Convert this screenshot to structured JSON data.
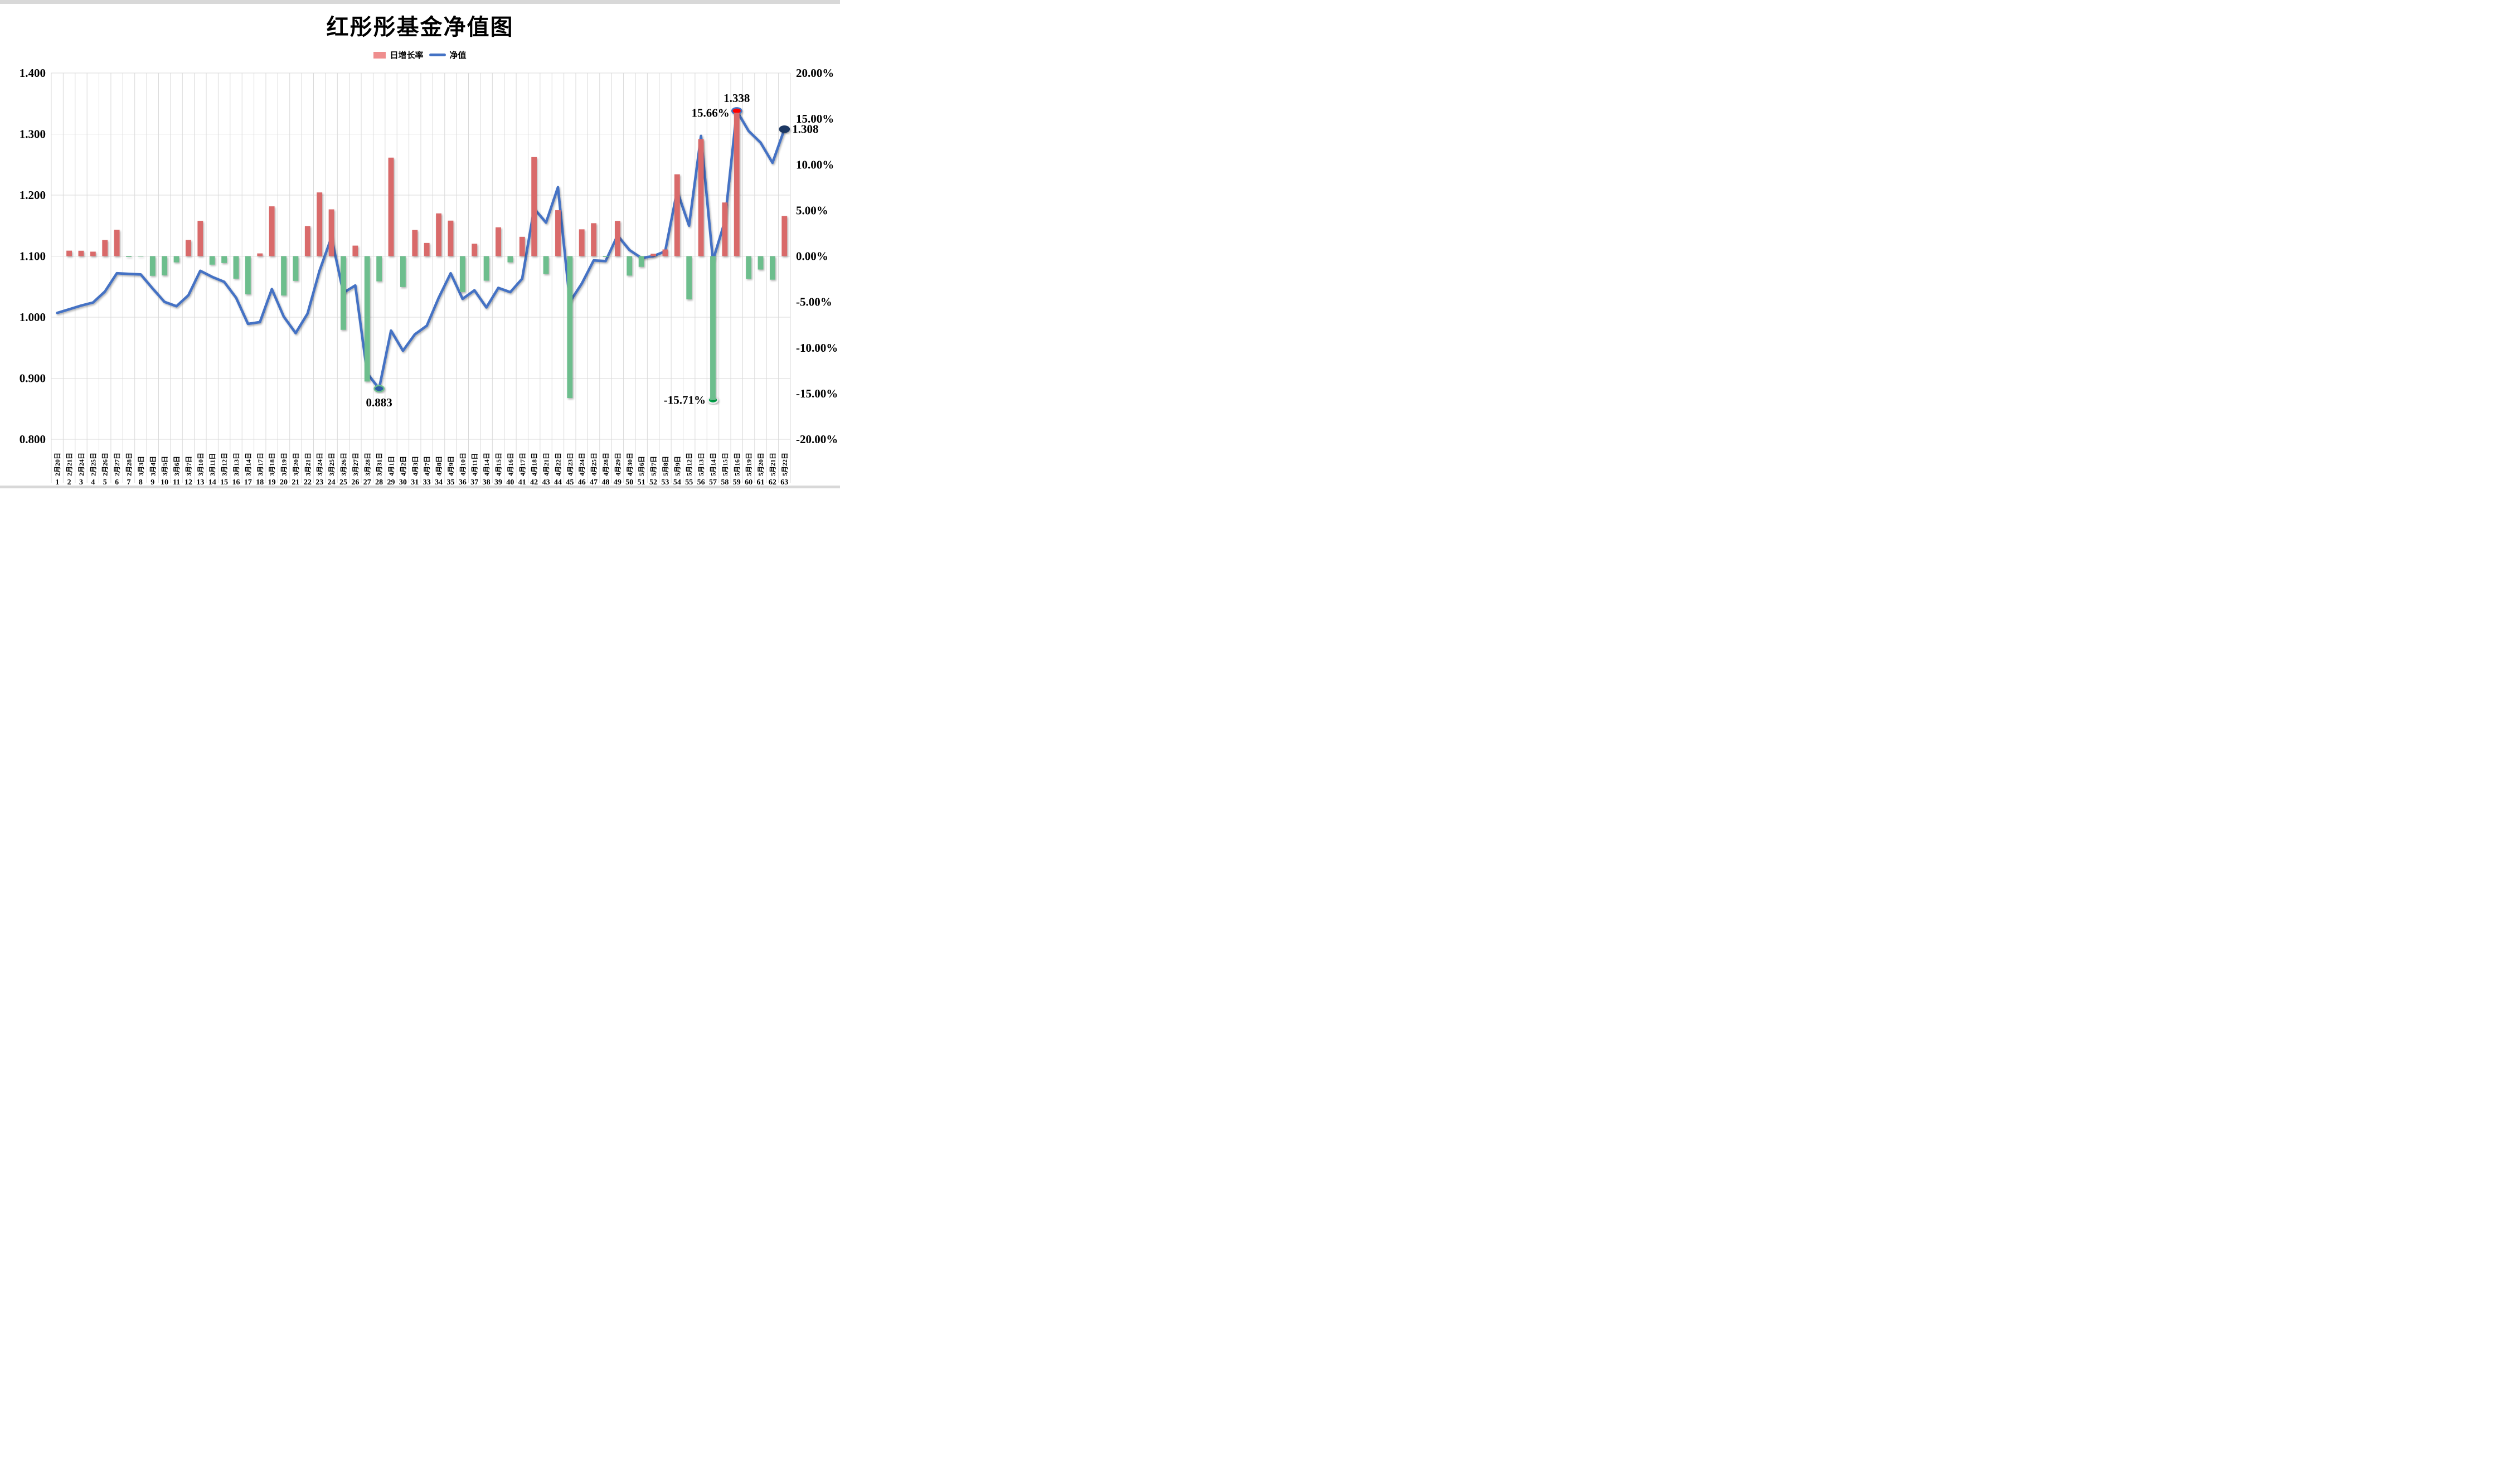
{
  "page": {
    "title": "红彤彤基金净值图"
  },
  "legend": {
    "bar_label": "日增长率",
    "line_label": "净值"
  },
  "colors": {
    "bar_up": "#d96a6a",
    "bar_down": "#6dbe8d",
    "line": "#4472c4",
    "grid": "#d9d9d9",
    "marker_min_fill": "#2e5fa3",
    "marker_min_ring": "#6dbe8d",
    "marker_barlow_fill": "#00b050",
    "marker_barlow_ring": "#f2f2f2",
    "marker_max_fill": "#ff0000",
    "marker_max_ring": "#4472c4",
    "marker_last_fill": "#1f3864",
    "marker_last_ring": "#1f3864"
  },
  "axes": {
    "left_ticks": [
      "1.400",
      "1.300",
      "1.200",
      "1.100",
      "1.000",
      "0.900",
      "0.800"
    ],
    "right_ticks": [
      "20.00%",
      "15.00%",
      "10.00%",
      "5.00%",
      "0.00%",
      "-5.00%",
      "-10.00%",
      "-15.00%",
      "-20.00%"
    ]
  },
  "chart_data": {
    "type": "combo (bar + line)",
    "title": "红彤彤基金净值图",
    "left_axis": {
      "label": "净值",
      "min": 0.8,
      "max": 1.4,
      "step": 0.1
    },
    "right_axis": {
      "label": "日增长率",
      "min": -20,
      "max": 20,
      "step": 5,
      "unit": "%"
    },
    "grid": "on",
    "legend_position": "top",
    "categories": [
      "2月20日",
      "2月21日",
      "2月24日",
      "2月25日",
      "2月26日",
      "2月27日",
      "2月28日",
      "3月3日",
      "3月4日",
      "3月5日",
      "3月6日",
      "3月7日",
      "3月10日",
      "3月11日",
      "3月12日",
      "3月13日",
      "3月14日",
      "3月17日",
      "3月18日",
      "3月19日",
      "3月20日",
      "3月21日",
      "3月24日",
      "3月25日",
      "3月26日",
      "3月27日",
      "3月28日",
      "3月31日",
      "4月1日",
      "4月2日",
      "4月3日",
      "4月7日",
      "4月8日",
      "4月9日",
      "4月10日",
      "4月11日",
      "4月14日",
      "4月15日",
      "4月16日",
      "4月17日",
      "4月18日",
      "4月21日",
      "4月22日",
      "4月23日",
      "4月24日",
      "4月25日",
      "4月28日",
      "4月29日",
      "4月30日",
      "5月6日",
      "5月7日",
      "5月8日",
      "5月9日",
      "5月12日",
      "5月13日",
      "5月14日",
      "5月15日",
      "5月16日",
      "5月19日",
      "5月20日",
      "5月21日",
      "5月22日"
    ],
    "category_indices": [
      1,
      2,
      3,
      4,
      5,
      6,
      7,
      8,
      9,
      10,
      11,
      12,
      13,
      14,
      15,
      16,
      17,
      18,
      19,
      20,
      21,
      22,
      23,
      24,
      25,
      26,
      27,
      28,
      29,
      30,
      31,
      33,
      34,
      35,
      36,
      37,
      38,
      39,
      40,
      41,
      42,
      43,
      44,
      45,
      46,
      47,
      48,
      49,
      50,
      51,
      52,
      53,
      54,
      55,
      56,
      57,
      58,
      59,
      60,
      61,
      62,
      63
    ],
    "series": [
      {
        "name": "日增长率",
        "type": "bar",
        "axis": "right",
        "unit": "%",
        "values": [
          null,
          0.6,
          0.59,
          0.49,
          1.76,
          2.88,
          -0.09,
          -0.05,
          -2.15,
          -2.1,
          -0.68,
          1.77,
          3.86,
          -0.93,
          -0.75,
          -2.46,
          -4.17,
          0.3,
          5.44,
          -4.3,
          -2.7,
          3.29,
          6.96,
          5.11,
          -8.05,
          1.15,
          -13.69,
          -2.75,
          10.76,
          -3.37,
          2.86,
          1.44,
          4.67,
          3.88,
          -3.92,
          1.36,
          -2.68,
          3.15,
          -0.67,
          2.11,
          10.82,
          -1.95,
          5.02,
          -15.5,
          2.93,
          3.6,
          -0.09,
          3.85,
          -2.12,
          -1.17,
          0.27,
          0.73,
          8.94,
          -4.72,
          12.78,
          -15.71,
          5.86,
          15.66,
          -2.47,
          -1.46,
          -2.57,
          4.39
        ]
      },
      {
        "name": "净值",
        "type": "line",
        "axis": "left",
        "values": [
          1.007,
          1.013,
          1.019,
          1.024,
          1.042,
          1.072,
          1.071,
          1.07,
          1.047,
          1.025,
          1.018,
          1.036,
          1.076,
          1.066,
          1.058,
          1.032,
          0.989,
          0.992,
          1.046,
          1.001,
          0.974,
          1.006,
          1.076,
          1.131,
          1.04,
          1.052,
          0.908,
          0.883,
          0.978,
          0.945,
          0.972,
          0.986,
          1.032,
          1.072,
          1.03,
          1.044,
          1.016,
          1.048,
          1.041,
          1.063,
          1.178,
          1.155,
          1.213,
          1.025,
          1.055,
          1.093,
          1.092,
          1.134,
          1.11,
          1.097,
          1.1,
          1.108,
          1.207,
          1.15,
          1.297,
          1.093,
          1.157,
          1.338,
          1.305,
          1.286,
          1.253,
          1.308
        ]
      }
    ],
    "annotations": [
      {
        "cat": "3月31日",
        "series": "净值",
        "text": "0.883",
        "position": "below"
      },
      {
        "cat": "5月14日",
        "series": "日增长率",
        "text": "-15.71%",
        "position": "left-of-bar-end"
      },
      {
        "cat": "5月16日",
        "series": "日增长率",
        "text": "15.66%",
        "position": "left-of-point"
      },
      {
        "cat": "5月16日",
        "series": "净值",
        "text": "1.338",
        "position": "above"
      },
      {
        "cat": "5月22日",
        "series": "净值",
        "text": "1.308",
        "position": "right"
      }
    ],
    "markers": [
      {
        "cat": "3月31日",
        "on": "line",
        "fill": "marker_min_fill",
        "ring": "marker_min_ring"
      },
      {
        "cat": "5月14日",
        "on": "bar-end",
        "fill": "marker_barlow_fill",
        "ring": "marker_barlow_ring"
      },
      {
        "cat": "5月16日",
        "on": "line",
        "fill": "marker_max_fill",
        "ring": "marker_max_ring"
      },
      {
        "cat": "5月22日",
        "on": "line",
        "fill": "marker_last_fill",
        "ring": "marker_last_ring"
      }
    ]
  }
}
